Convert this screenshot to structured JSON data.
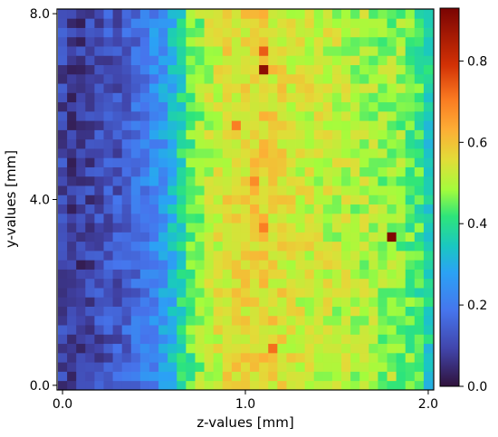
{
  "chart_data": {
    "type": "heatmap",
    "title": "",
    "xlabel": "z-values [mm]",
    "ylabel": "y-values [mm]",
    "xlim": [
      -0.03,
      2.03
    ],
    "ylim": [
      -0.1,
      8.1
    ],
    "xticks": [
      {
        "value": 0.0,
        "label": "0.0"
      },
      {
        "value": 1.0,
        "label": "1.0"
      },
      {
        "value": 2.0,
        "label": "2.0"
      }
    ],
    "yticks": [
      {
        "value": 0.0,
        "label": "0.0"
      },
      {
        "value": 4.0,
        "label": "4.0"
      },
      {
        "value": 8.0,
        "label": "8.0"
      }
    ],
    "grid": false,
    "colormap": "turbo",
    "colorbar": {
      "range": [
        0.0,
        0.93
      ],
      "ticks": [
        {
          "value": 0.0,
          "label": "0.0"
        },
        {
          "value": 0.2,
          "label": "0.2"
        },
        {
          "value": 0.4,
          "label": "0.4"
        },
        {
          "value": 0.6,
          "label": "0.6"
        },
        {
          "value": 0.8,
          "label": "0.8"
        }
      ]
    },
    "grid_shape": {
      "columns": 41,
      "rows": 41
    },
    "column_profile": {
      "z": [
        0.0,
        0.05,
        0.1,
        0.15,
        0.2,
        0.25,
        0.3,
        0.35,
        0.4,
        0.45,
        0.5,
        0.55,
        0.6,
        0.65,
        0.7,
        0.75,
        0.8,
        0.85,
        0.9,
        0.95,
        1.0,
        1.05,
        1.1,
        1.15,
        1.2,
        1.25,
        1.3,
        1.35,
        1.4,
        1.45,
        1.5,
        1.55,
        1.6,
        1.65,
        1.7,
        1.75,
        1.8,
        1.85,
        1.9,
        1.95,
        2.0
      ],
      "mean_value": [
        0.1,
        0.08,
        0.08,
        0.09,
        0.11,
        0.12,
        0.13,
        0.15,
        0.17,
        0.2,
        0.23,
        0.26,
        0.31,
        0.38,
        0.44,
        0.48,
        0.51,
        0.53,
        0.55,
        0.56,
        0.56,
        0.57,
        0.58,
        0.56,
        0.55,
        0.54,
        0.53,
        0.53,
        0.52,
        0.52,
        0.51,
        0.51,
        0.5,
        0.5,
        0.49,
        0.48,
        0.48,
        0.47,
        0.45,
        0.42,
        0.36
      ]
    },
    "highlights": [
      {
        "z": 1.8,
        "y": 3.2,
        "value": 0.92
      },
      {
        "z": 1.1,
        "y": 6.8,
        "value": 0.9
      },
      {
        "z": 1.1,
        "y": 7.2,
        "value": 0.74
      },
      {
        "z": 1.15,
        "y": 0.8,
        "value": 0.72
      },
      {
        "z": 1.1,
        "y": 3.4,
        "value": 0.7
      },
      {
        "z": 0.95,
        "y": 5.6,
        "value": 0.7
      },
      {
        "z": 1.05,
        "y": 4.4,
        "value": 0.68
      }
    ]
  }
}
